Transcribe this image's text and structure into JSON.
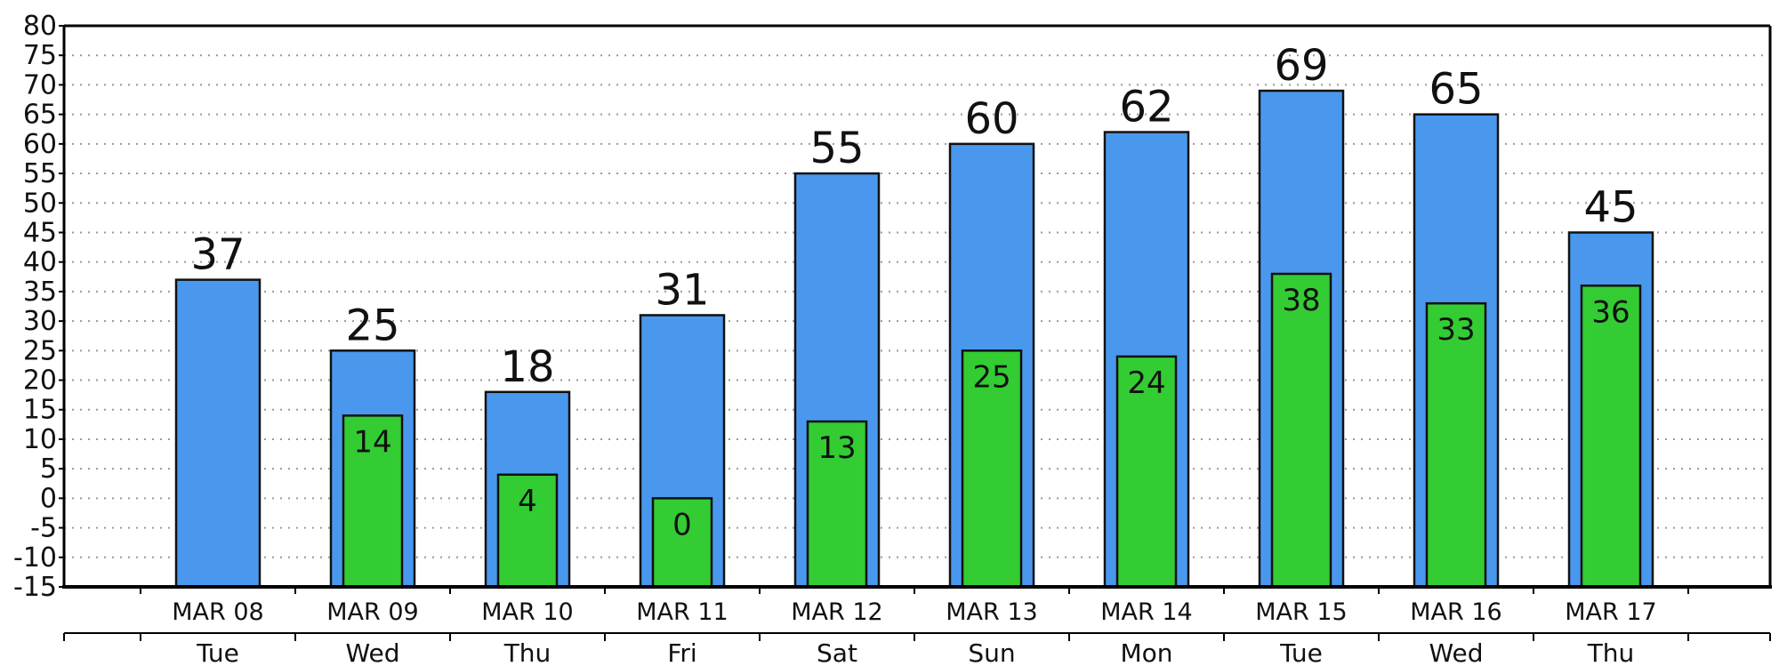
{
  "chart_data": {
    "type": "bar",
    "title": "",
    "xlabel": "",
    "ylabel": "",
    "ylim": [
      -15,
      80
    ],
    "yticks": [
      80,
      75,
      70,
      65,
      60,
      55,
      50,
      45,
      40,
      35,
      30,
      25,
      20,
      15,
      10,
      5,
      0,
      -5,
      -10,
      -15
    ],
    "ytick_labels": [
      "80",
      "75",
      "70",
      "65",
      "60",
      "55",
      "50",
      "45",
      "40",
      "35",
      "30",
      "25",
      "20",
      "15",
      "10",
      "5",
      "0",
      "-5",
      "-10",
      "-15"
    ],
    "grid": true,
    "legend": "none",
    "categories": [
      "MAR 08",
      "MAR 09",
      "MAR 10",
      "MAR 11",
      "MAR 12",
      "MAR 13",
      "MAR 14",
      "MAR 15",
      "MAR 16",
      "MAR 17"
    ],
    "days": [
      "Tue",
      "Wed",
      "Thu",
      "Fri",
      "Sat",
      "Sun",
      "Mon",
      "Tue",
      "Wed",
      "Thu"
    ],
    "series": [
      {
        "values": [
          37,
          25,
          18,
          31,
          55,
          60,
          62,
          69,
          65,
          45
        ],
        "labels": [
          "37",
          "25",
          "18",
          "31",
          "55",
          "60",
          "62",
          "69",
          "65",
          "45"
        ],
        "color": "#4a98ee"
      },
      {
        "values": [
          null,
          14,
          4,
          0,
          13,
          25,
          24,
          38,
          33,
          36
        ],
        "labels": [
          "",
          "14",
          "4",
          "0",
          "13",
          "25",
          "24",
          "38",
          "33",
          "36"
        ],
        "color": "#33cc33"
      }
    ]
  }
}
